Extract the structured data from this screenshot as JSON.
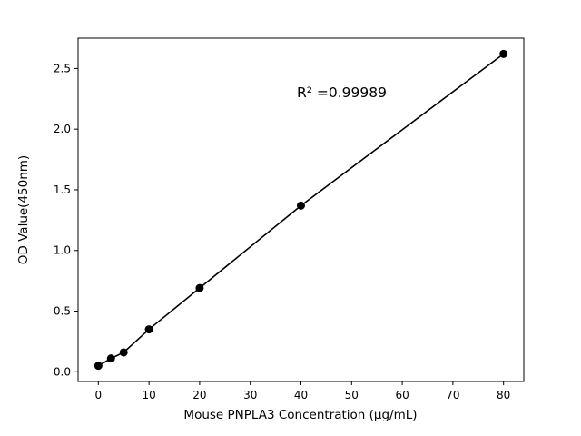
{
  "chart_data": {
    "type": "scatter",
    "title": "",
    "xlabel": "Mouse PNPLA3 Concentration (μg/mL)",
    "ylabel": "OD Value(450nm)",
    "x": [
      0,
      2.5,
      5,
      10,
      20,
      40,
      80
    ],
    "y": [
      0.05,
      0.11,
      0.16,
      0.35,
      0.69,
      1.37,
      2.62
    ],
    "xlim": [
      -4,
      84
    ],
    "ylim": [
      -0.08,
      2.75
    ],
    "xticks": [
      0,
      10,
      20,
      30,
      40,
      50,
      60,
      70,
      80
    ],
    "xtick_labels": [
      "0",
      "10",
      "20",
      "30",
      "40",
      "50",
      "60",
      "70",
      "80"
    ],
    "yticks": [
      0.0,
      0.5,
      1.0,
      1.5,
      2.0,
      2.5
    ],
    "ytick_labels": [
      "0.0",
      "0.5",
      "1.0",
      "1.5",
      "2.0",
      "2.5"
    ],
    "grid": false,
    "legend": null,
    "annotation": {
      "text": "R² =0.99989",
      "x": 39,
      "y": 2.3
    },
    "line_color": "#000000",
    "marker_color": "#000000",
    "background": "#ffffff"
  }
}
